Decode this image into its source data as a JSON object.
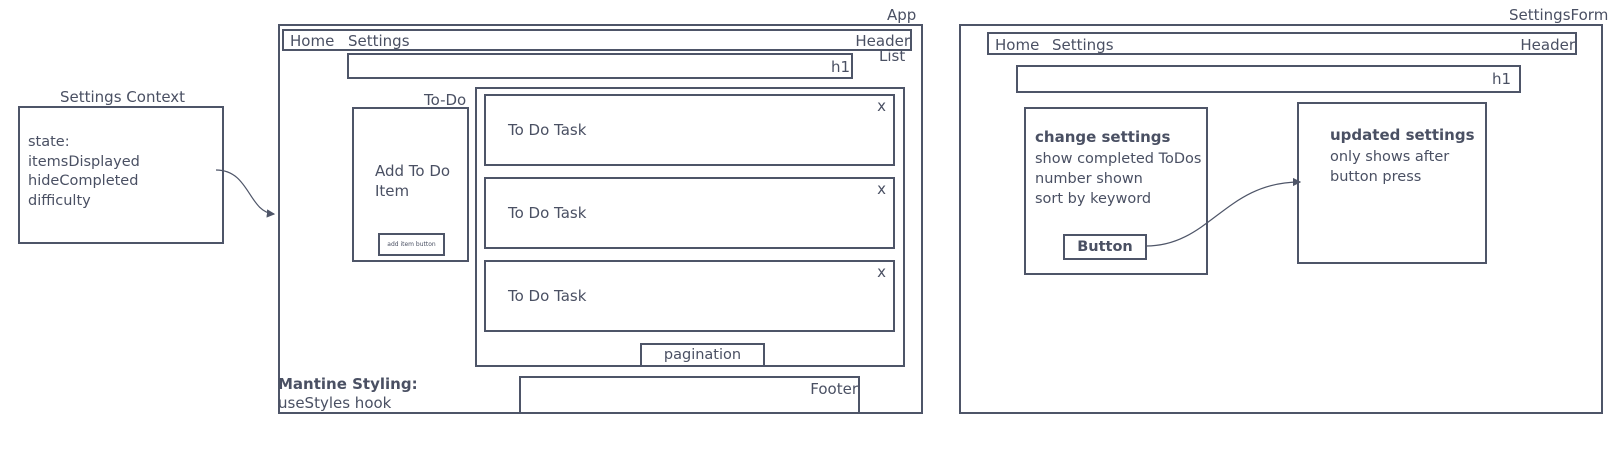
{
  "settings_context": {
    "title": "Settings Context",
    "lines": "state:\nitemsDisplayed\nhideCompleted\ndifficulty"
  },
  "app": {
    "label": "App",
    "header": {
      "home": "Home",
      "settings": "Settings",
      "label": "Header"
    },
    "h1_label": "h1",
    "list_label": "List",
    "todo": {
      "label": "To-Do",
      "add_text": "Add To Do\nItem",
      "button_label": "add item button"
    },
    "tasks": [
      {
        "text": "To Do Task",
        "close": "x"
      },
      {
        "text": "To Do Task",
        "close": "x"
      },
      {
        "text": "To Do Task",
        "close": "x"
      }
    ],
    "pagination": "pagination",
    "footer": "Footer",
    "styling_title": "Mantine Styling:",
    "styling_text": "useStyles hook"
  },
  "settings_form": {
    "label": "SettingsForm",
    "header": {
      "home": "Home",
      "settings": "Settings",
      "label": "Header"
    },
    "h1_label": "h1",
    "change": {
      "title": "change settings",
      "lines": "show completed ToDos\nnumber shown\nsort by keyword",
      "button": "Button"
    },
    "updated": {
      "title": "updated settings",
      "lines": "only shows after\nbutton press"
    }
  }
}
